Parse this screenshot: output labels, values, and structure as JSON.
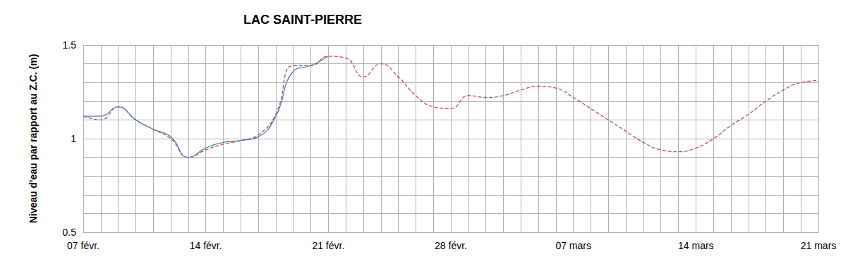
{
  "chart_data": {
    "type": "line",
    "title": "LAC SAINT-PIERRE",
    "y_label": "Niveau d'eau par rapport au Z.C. (m)",
    "categories": [
      "07 févr.",
      null,
      null,
      null,
      null,
      null,
      null,
      "14 févr.",
      null,
      null,
      null,
      null,
      null,
      null,
      "21 févr.",
      null,
      null,
      null,
      null,
      null,
      null,
      "28 févr.",
      null,
      null,
      null,
      null,
      null,
      null,
      "07 mars",
      null,
      null,
      null,
      null,
      null,
      null,
      "14 mars",
      null,
      null,
      null,
      null,
      null,
      null,
      "21 mars"
    ],
    "series": [
      {
        "color": "#c0504d",
        "line_style": "dashed",
        "values": [
          1.12,
          1.1,
          1.17,
          1.1,
          1.05,
          1.0,
          0.9,
          0.94,
          0.97,
          0.99,
          1.02,
          1.13,
          1.39,
          1.39,
          1.44,
          1.43,
          1.33,
          1.4,
          1.33,
          1.23,
          1.17,
          1.16,
          1.23,
          1.22,
          1.23,
          1.26,
          1.28,
          1.27,
          1.22,
          1.16,
          1.1,
          1.04,
          0.98,
          0.94,
          0.93,
          0.95,
          1.0,
          1.07,
          1.13,
          1.2,
          1.26,
          1.3,
          1.31
        ]
      },
      {
        "color": "#4f81bd",
        "line_style": "solid",
        "values": [
          1.12,
          1.12,
          1.17,
          1.1,
          1.05,
          1.01,
          0.9,
          0.95,
          0.98,
          0.99,
          1.01,
          1.12,
          1.36,
          1.39,
          1.44,
          null,
          null,
          null,
          null,
          null,
          null,
          null,
          null,
          null,
          null,
          null,
          null,
          null,
          null,
          null,
          null,
          null,
          null,
          null,
          null,
          null,
          null,
          null,
          null,
          null,
          null,
          null,
          null
        ]
      }
    ],
    "ylim": [
      0.5,
      1.5
    ],
    "yticks": [
      0.5,
      1,
      1.5
    ],
    "grid": true
  }
}
